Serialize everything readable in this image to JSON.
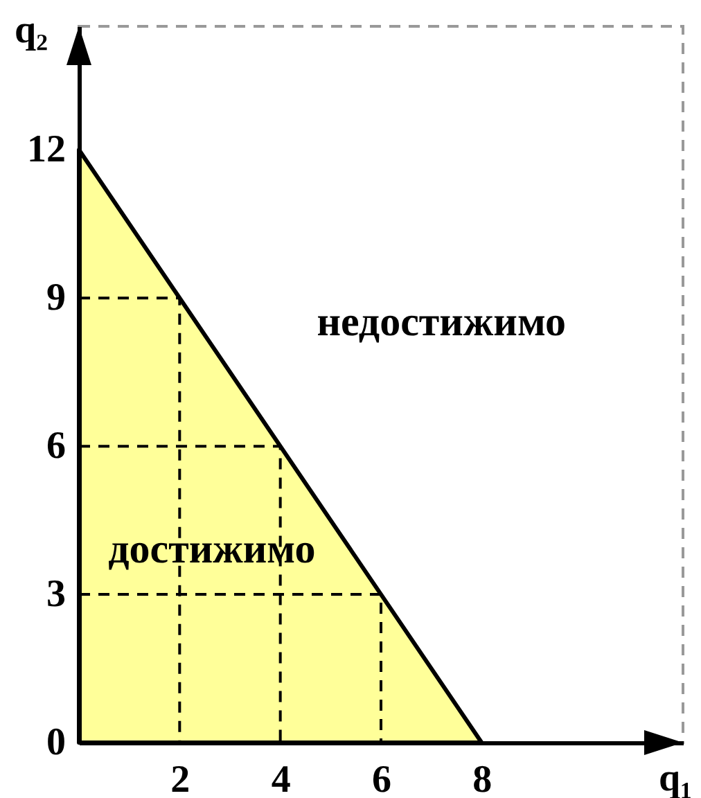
{
  "chart_data": {
    "type": "line",
    "xlabel": "q₁",
    "ylabel": "q₂",
    "xlim": [
      0,
      12
    ],
    "ylim": [
      0,
      14.5
    ],
    "xticks": [
      2,
      4,
      6,
      8
    ],
    "yticks": [
      0,
      3,
      6,
      9,
      12
    ],
    "grid": false,
    "marker": "none",
    "series": [
      {
        "type": "area",
        "color": "#ffff99",
        "x": [
          0,
          8
        ],
        "values": [
          12,
          0
        ]
      },
      {
        "color": "#000000",
        "line_style": "dashed",
        "x": [
          0,
          2,
          2
        ],
        "values": [
          9,
          9,
          0
        ]
      },
      {
        "color": "#000000",
        "line_style": "dashed",
        "x": [
          0,
          4,
          4
        ],
        "values": [
          6,
          6,
          0
        ]
      },
      {
        "color": "#000000",
        "line_style": "dashed",
        "x": [
          0,
          6,
          6
        ],
        "values": [
          3,
          3,
          0
        ]
      }
    ],
    "annotations": [
      "достижимо",
      "недостижимо"
    ]
  }
}
